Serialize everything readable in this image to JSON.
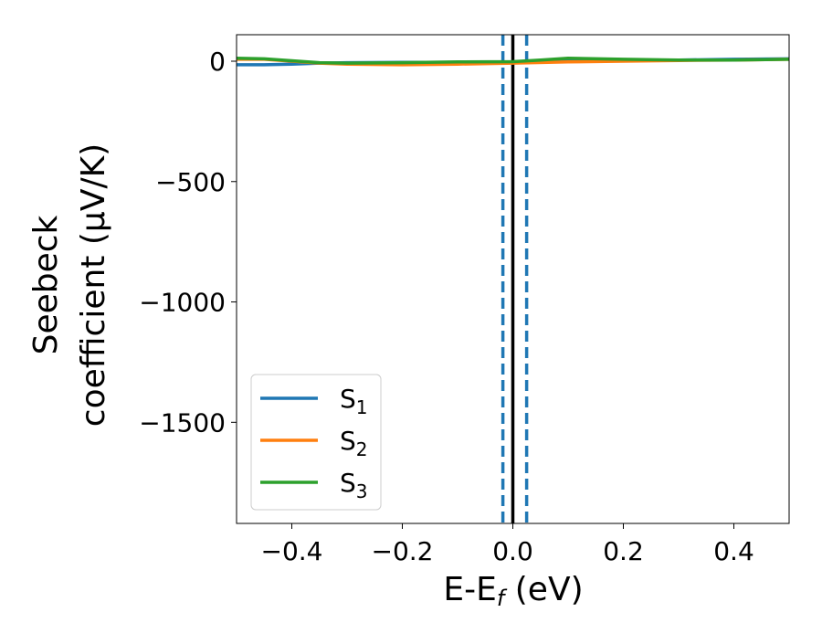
{
  "chart_data": {
    "type": "line",
    "title": "",
    "xlabel": "E-E",
    "xlabel_sub": "f",
    "xlabel_unit": " (eV)",
    "ylabel_line1": "Seebeck",
    "ylabel_line2": "coefficient  (μV/K)",
    "xlim": [
      -0.5,
      0.5
    ],
    "ylim": [
      -1920,
      110
    ],
    "xticks": [
      {
        "value": -0.4,
        "label": "−0.4"
      },
      {
        "value": -0.2,
        "label": "−0.2"
      },
      {
        "value": 0.0,
        "label": "0.0"
      },
      {
        "value": 0.2,
        "label": "0.2"
      },
      {
        "value": 0.4,
        "label": "0.4"
      }
    ],
    "yticks": [
      {
        "value": 0,
        "label": "0"
      },
      {
        "value": -500,
        "label": "−500"
      },
      {
        "value": -1000,
        "label": "−1000"
      },
      {
        "value": -1500,
        "label": "−1500"
      }
    ],
    "grid": false,
    "legend_position": "lower-left",
    "series": [
      {
        "name": "S",
        "subscript": "1",
        "color": "#1f77b4",
        "x": [
          -0.5,
          -0.45,
          -0.4,
          -0.35,
          -0.3,
          -0.2,
          -0.1,
          0.0,
          0.1,
          0.2,
          0.3,
          0.4,
          0.5
        ],
        "y": [
          -15,
          -15,
          -12,
          -8,
          -6,
          -5,
          -5,
          -3,
          0,
          2,
          5,
          8,
          10
        ]
      },
      {
        "name": "S",
        "subscript": "2",
        "color": "#ff7f0e",
        "x": [
          -0.5,
          -0.45,
          -0.4,
          -0.35,
          -0.3,
          -0.2,
          -0.1,
          0.0,
          0.1,
          0.2,
          0.3,
          0.4,
          0.5
        ],
        "y": [
          8,
          8,
          0,
          -8,
          -12,
          -15,
          -12,
          -8,
          -3,
          0,
          3,
          5,
          8
        ]
      },
      {
        "name": "S",
        "subscript": "3",
        "color": "#2ca02c",
        "x": [
          -0.5,
          -0.45,
          -0.4,
          -0.35,
          -0.3,
          -0.2,
          -0.1,
          0.0,
          0.05,
          0.1,
          0.2,
          0.3,
          0.4,
          0.5
        ],
        "y": [
          12,
          10,
          2,
          -6,
          -8,
          -6,
          -3,
          -2,
          5,
          12,
          8,
          5,
          5,
          8
        ]
      }
    ],
    "vlines": [
      {
        "x": 0.0,
        "color": "#000000",
        "style": "solid"
      },
      {
        "x": -0.018,
        "color": "#1f77b4",
        "style": "dashed"
      },
      {
        "x": 0.025,
        "color": "#1f77b4",
        "style": "dashed"
      }
    ]
  }
}
